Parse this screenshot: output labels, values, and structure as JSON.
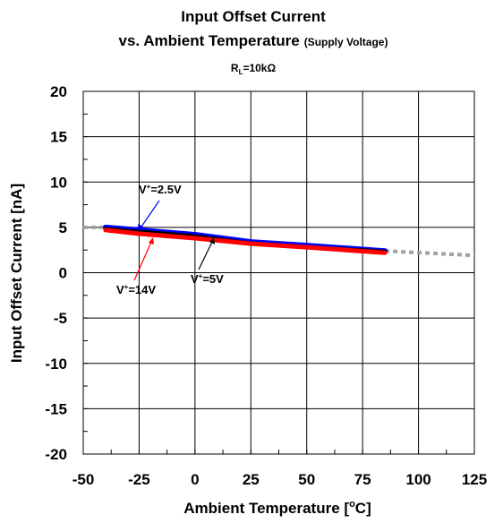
{
  "chart_data": {
    "type": "line",
    "title_line1": "Input Offset Current",
    "title_line2": "vs. Ambient Temperature",
    "title_suffix": "(Supply Voltage)",
    "condition": {
      "prefix": "R",
      "sub": "L",
      "rest": "=10kΩ"
    },
    "xlabel": {
      "main": "Ambient Temperature [",
      "sup": "o",
      "tail": "C]"
    },
    "ylabel": "Input Offset Current [nA]",
    "xlim": [
      -50,
      125
    ],
    "ylim": [
      -20,
      20
    ],
    "xticks": [
      "-50",
      "-25",
      "0",
      "25",
      "50",
      "75",
      "100",
      "125"
    ],
    "yticks": [
      "20",
      "15",
      "10",
      "5",
      "0",
      "-5",
      "-10",
      "-15",
      "-20"
    ],
    "grid": true,
    "series": [
      {
        "name": "V+=2.5V",
        "label": {
          "pre": "V",
          "sup": "+",
          "post": "=2.5V"
        },
        "color": "#0000ff",
        "x": [
          -40,
          -25,
          0,
          25,
          50,
          85
        ],
        "y": [
          5.0,
          4.7,
          4.2,
          3.4,
          3.0,
          2.4
        ]
      },
      {
        "name": "V+=5V",
        "label": {
          "pre": "V",
          "sup": "+",
          "post": "=5V"
        },
        "color": "#000000",
        "x": [
          -40,
          -25,
          0,
          25,
          50,
          85
        ],
        "y": [
          4.9,
          4.6,
          4.1,
          3.3,
          2.9,
          2.4
        ]
      },
      {
        "name": "V+=14V",
        "label": {
          "pre": "V",
          "sup": "+",
          "post": "=14V"
        },
        "color": "#ff0000",
        "x": [
          -40,
          -25,
          0,
          25,
          50,
          85
        ],
        "y": [
          4.7,
          4.3,
          3.8,
          3.2,
          2.8,
          2.2
        ]
      }
    ],
    "extrapolation": {
      "color": "#a0a0a0",
      "left": {
        "x": [
          -50,
          -40
        ],
        "y": [
          5.0,
          5.0
        ]
      },
      "right": {
        "x": [
          85,
          125
        ],
        "y": [
          2.4,
          1.9
        ]
      }
    }
  }
}
